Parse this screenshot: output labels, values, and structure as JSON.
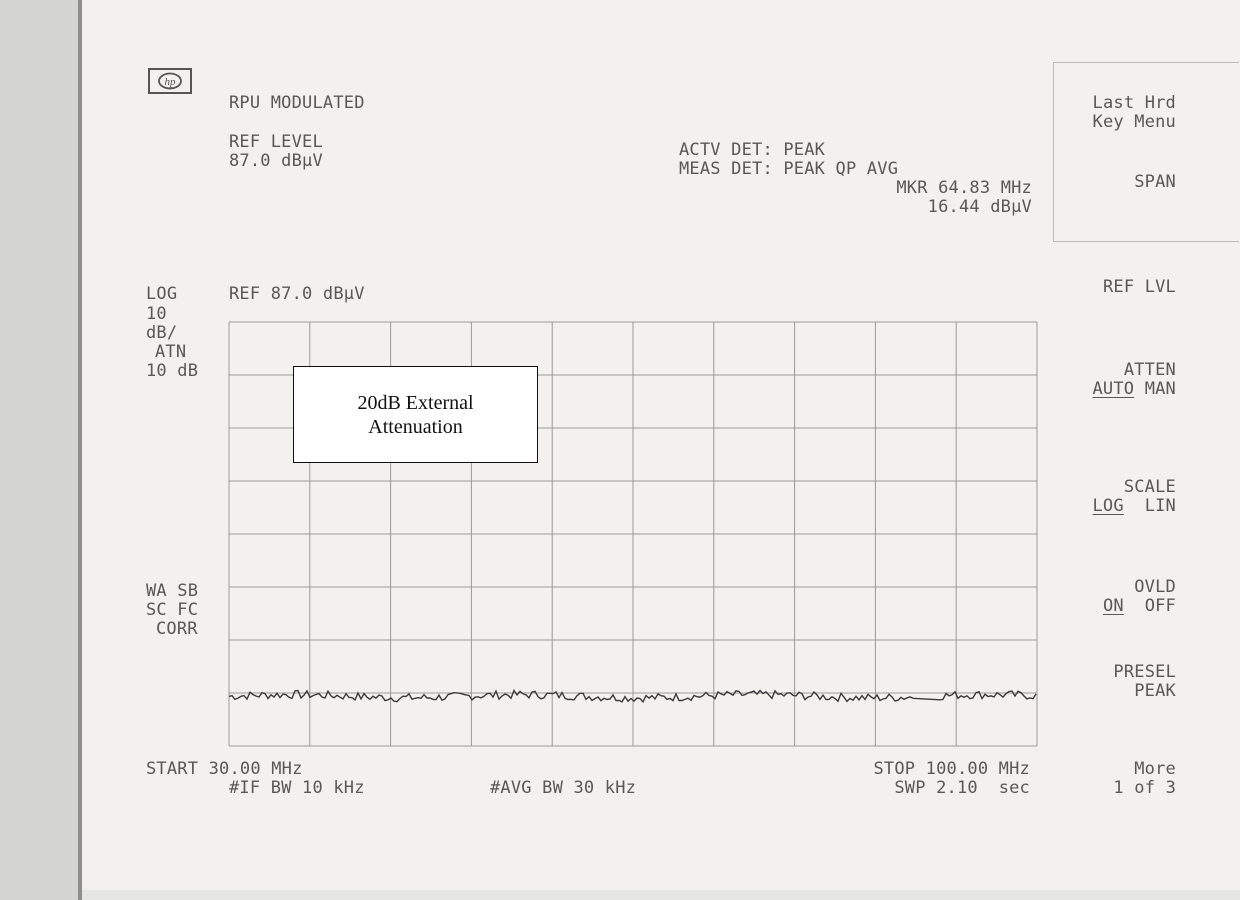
{
  "header": {
    "title": "RPU MODULATED",
    "ref_level_label": "REF LEVEL",
    "ref_level_value": "87.0 dBµV",
    "active_detector": "ACTV DET: PEAK",
    "meas_detector": "MEAS DET: PEAK QP AVG",
    "marker_freq": "MKR 64.83 MHz",
    "marker_level": "16.44 dBµV"
  },
  "left_labels": {
    "scale_mode": "LOG",
    "ref": "REF 87.0 dBµV",
    "div_value": "10",
    "div_unit": "dB/",
    "atn_label": "ATN",
    "atn_value": "10 dB",
    "status1": "WA SB",
    "status2": "SC FC",
    "status3": "CORR"
  },
  "footer": {
    "start": "START 30.00 MHz",
    "stop": "STOP 100.00 MHz",
    "if_bw": "#IF BW 10 kHz",
    "avg_bw": "#AVG BW 30 kHz",
    "sweep": "SWP 2.10  sec"
  },
  "annotation": {
    "line1": "20dB External",
    "line2": "Attenuation"
  },
  "softkeys": {
    "last_hrd_line1": "Last Hrd",
    "last_hrd_line2": "Key Menu",
    "span": "SPAN",
    "ref_lvl": "REF LVL",
    "atten": "ATTEN",
    "atten_auto": "AUTO",
    "atten_man": "MAN",
    "scale": "SCALE",
    "scale_log": "LOG",
    "scale_lin": "LIN",
    "ovld": "OVLD",
    "ovld_on": "ON",
    "ovld_off": "OFF",
    "presel_line1": "PRESEL",
    "presel_line2": "PEAK",
    "more_line1": "More",
    "more_line2": "1 of 3"
  },
  "chart_data": {
    "type": "line",
    "x_start_mhz": 30.0,
    "x_stop_mhz": 100.0,
    "ref_level_dbuv": 87.0,
    "db_per_div": 10,
    "divisions_y": 8,
    "divisions_x": 10,
    "ylim": [
      7.0,
      87.0
    ],
    "grid": true,
    "trace_level_dbuv": 16.4,
    "marker": {
      "freq_mhz": 64.83,
      "level_dbuv": 16.44
    }
  },
  "colors": {
    "screen_bg": "#f2f1ee",
    "text": "#585858",
    "grid": "#9a9a9a",
    "trace": "#3a3a3a"
  }
}
